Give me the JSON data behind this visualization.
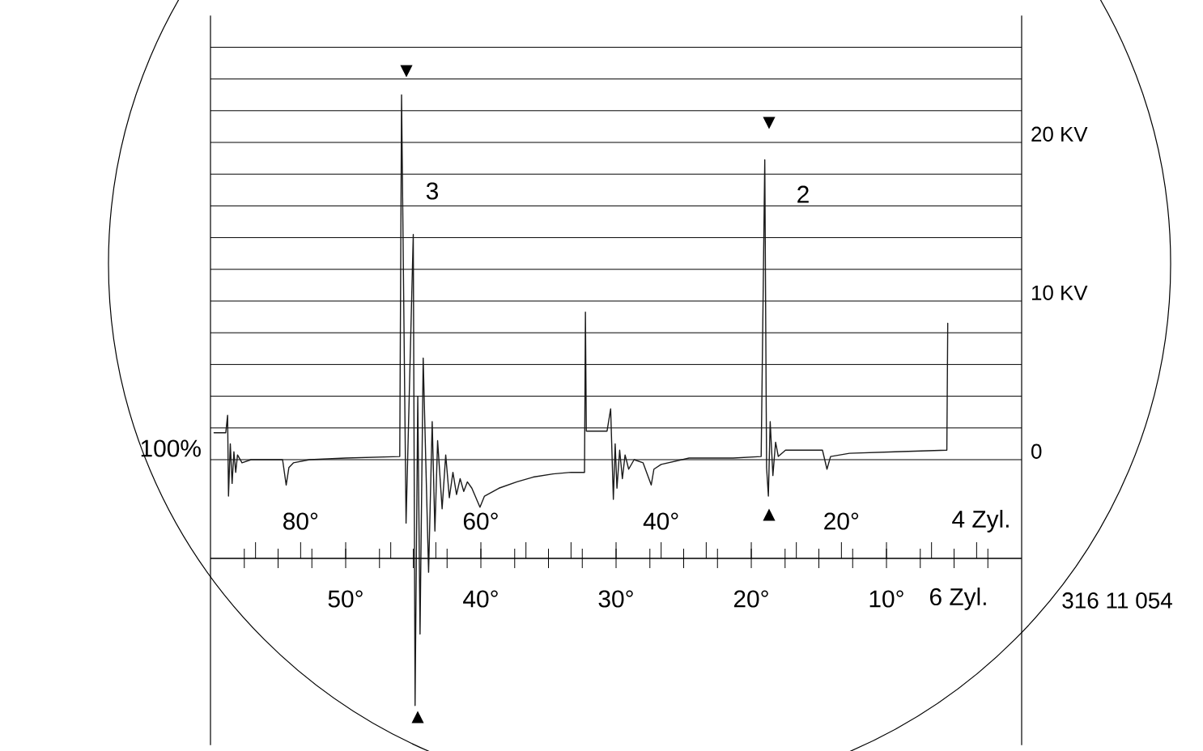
{
  "chart_data": {
    "type": "line",
    "xlabel": "4 Zyl.",
    "x2label": "6 Zyl.",
    "xlim": [
      90,
      0
    ],
    "xticks": [
      {
        "value": 80,
        "label": "80°"
      },
      {
        "value": 60,
        "label": "60°"
      },
      {
        "value": 40,
        "label": "40°"
      },
      {
        "value": 20,
        "label": "20°"
      }
    ],
    "x2lim": [
      60,
      0
    ],
    "x2ticks": [
      {
        "value": 50,
        "label": "50°"
      },
      {
        "value": 40,
        "label": "40°"
      },
      {
        "value": 30,
        "label": "30°"
      },
      {
        "value": 20,
        "label": "20°"
      },
      {
        "value": 10,
        "label": "10°"
      }
    ],
    "ylim": [
      -18,
      28
    ],
    "yticks": [
      0,
      {
        "value": 2,
        "label": null
      },
      {
        "value": 4,
        "label": null
      },
      {
        "value": 6,
        "label": null
      },
      {
        "value": 8,
        "label": null
      },
      {
        "value": 10,
        "label": "10 KV"
      },
      {
        "value": 12,
        "label": null
      },
      {
        "value": 14,
        "label": null
      },
      {
        "value": 16,
        "label": null
      },
      {
        "value": 18,
        "label": null
      },
      {
        "value": 20,
        "label": "20 KV"
      },
      {
        "value": 22,
        "label": null
      },
      {
        "value": 24,
        "label": null
      },
      {
        "value": 26,
        "label": null
      }
    ],
    "grid": "y",
    "series": [
      {
        "color": "#1a1a1a",
        "x": [
          89.6,
          88.3,
          88.1,
          88.0,
          87.8,
          87.6,
          87.4,
          87.2,
          87.0,
          86.5,
          85.5,
          82.0,
          81.6,
          81.3,
          80.8,
          79,
          75,
          69.0,
          68.8,
          68.3,
          67.5,
          67.3,
          67.0,
          66.75,
          66.4,
          65.8,
          65.4,
          65.1,
          64.8,
          64.3,
          63.9,
          63.5,
          63.1,
          62.7,
          62.3,
          61.9,
          61.5,
          61.0,
          60.1,
          59.6,
          58,
          56,
          54.2,
          52,
          50,
          48.5,
          48.4,
          48.3,
          46.0,
          45.6,
          45.3,
          45.1,
          44.9,
          44.6,
          44.3,
          44.0,
          43.6,
          43.0,
          42.0,
          41.1,
          40.8,
          40.0,
          36.9,
          32,
          28.9,
          28.5,
          28.3,
          28.1,
          27.9,
          27.6,
          27.3,
          27.0,
          26.2,
          22.1,
          21.6,
          21.2,
          19.1,
          14,
          8.3,
          8.2
        ],
        "values": [
          1.7,
          1.7,
          2.8,
          -2.3,
          1.0,
          -1.5,
          0.5,
          -0.8,
          0.3,
          -0.2,
          0.0,
          0.0,
          -1.6,
          -0.5,
          -0.2,
          0.0,
          0.1,
          0.2,
          23.0,
          -4,
          14.2,
          -15.5,
          4,
          -11,
          6.4,
          -7.1,
          2.4,
          -4.5,
          1.2,
          -3.1,
          0.3,
          -2.4,
          -0.8,
          -2.2,
          -1.2,
          -2.0,
          -1.4,
          -1.8,
          -3.0,
          -2.3,
          -1.8,
          -1.4,
          -1.1,
          -0.9,
          -0.8,
          -0.8,
          9.3,
          1.8,
          1.8,
          3.2,
          -2.5,
          1.0,
          -1.8,
          0.6,
          -1.2,
          0.3,
          -0.6,
          0.0,
          -0.2,
          -1.6,
          -0.6,
          -0.3,
          0.1,
          0.1,
          0.2,
          18.9,
          -0.5,
          -2.3,
          2.4,
          -1.0,
          1.1,
          0.2,
          0.6,
          0.6,
          -0.6,
          0.2,
          0.4,
          0.5,
          0.6,
          8.6
        ]
      }
    ],
    "annotations": [
      "3",
      "2",
      "▼",
      "▲",
      "▼",
      "▲",
      "100%",
      "316 11 054"
    ]
  }
}
